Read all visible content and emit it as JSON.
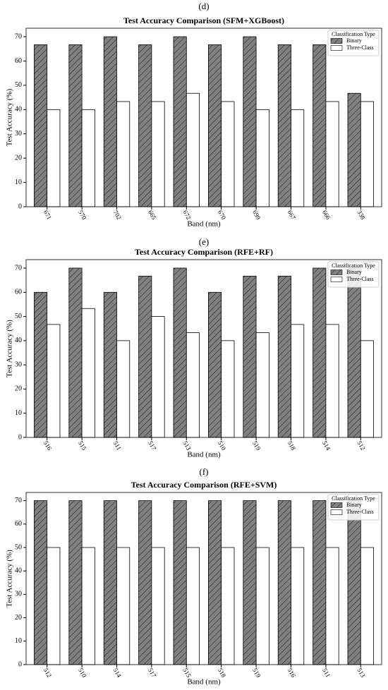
{
  "chart_data": [
    {
      "type": "bar",
      "panel_label": "(d)",
      "title": "Test Accuracy Comparison (SFM+XGBoost)",
      "x_label": "Band (nm)",
      "y_label": "Test Accuracy (%)",
      "categories": [
        "671",
        "570",
        "702",
        "665",
        "672",
        "670",
        "699",
        "667",
        "666",
        "338"
      ],
      "series": [
        {
          "name": "Binary",
          "color": "#808080",
          "hatch": true,
          "values": [
            66.7,
            66.7,
            70,
            66.7,
            70,
            66.7,
            70,
            66.7,
            66.7,
            46.7
          ]
        },
        {
          "name": "Three-Class",
          "color": "#ffffff",
          "hatch": false,
          "values": [
            40,
            40,
            43.3,
            43.3,
            46.7,
            43.3,
            40,
            40,
            43.3,
            43.3
          ]
        }
      ],
      "legend_title": "Classification Type",
      "legend": "upper right",
      "ylim": [
        0,
        73.5
      ],
      "yticks": [
        0,
        10,
        20,
        30,
        40,
        50,
        60,
        70
      ]
    },
    {
      "type": "bar",
      "panel_label": "(e)",
      "title": "Test Accuracy Comparison (RFE+RF)",
      "x_label": "Band (nm)",
      "y_label": "Test Accuracy (%)",
      "categories": [
        "516",
        "515",
        "511",
        "517",
        "513",
        "510",
        "519",
        "518",
        "514",
        "512"
      ],
      "series": [
        {
          "name": "Binary",
          "color": "#808080",
          "hatch": true,
          "values": [
            60,
            70,
            60,
            66.7,
            70,
            60,
            66.7,
            66.7,
            70,
            70
          ]
        },
        {
          "name": "Three-Class",
          "color": "#ffffff",
          "hatch": false,
          "values": [
            46.7,
            53.3,
            40,
            50,
            43.3,
            40,
            43.3,
            46.7,
            46.7,
            40
          ]
        }
      ],
      "legend_title": "Classification Type",
      "legend": "upper right",
      "ylim": [
        0,
        73.5
      ],
      "yticks": [
        0,
        10,
        20,
        30,
        40,
        50,
        60,
        70
      ]
    },
    {
      "type": "bar",
      "panel_label": "(f)",
      "title": "Test Accuracy Comparison (RFE+SVM)",
      "x_label": "Band (nm)",
      "y_label": "Test Accuracy (%)",
      "categories": [
        "512",
        "510",
        "514",
        "517",
        "515",
        "518",
        "519",
        "516",
        "511",
        "513"
      ],
      "series": [
        {
          "name": "Binary",
          "color": "#808080",
          "hatch": true,
          "values": [
            70,
            70,
            70,
            70,
            70,
            70,
            70,
            70,
            70,
            70
          ]
        },
        {
          "name": "Three-Class",
          "color": "#ffffff",
          "hatch": false,
          "values": [
            50,
            50,
            50,
            50,
            50,
            50,
            50,
            50,
            50,
            50
          ]
        }
      ],
      "legend_title": "Classification Type",
      "legend": "upper right",
      "ylim": [
        0,
        73.5
      ],
      "yticks": [
        0,
        10,
        20,
        30,
        40,
        50,
        60,
        70
      ]
    }
  ]
}
